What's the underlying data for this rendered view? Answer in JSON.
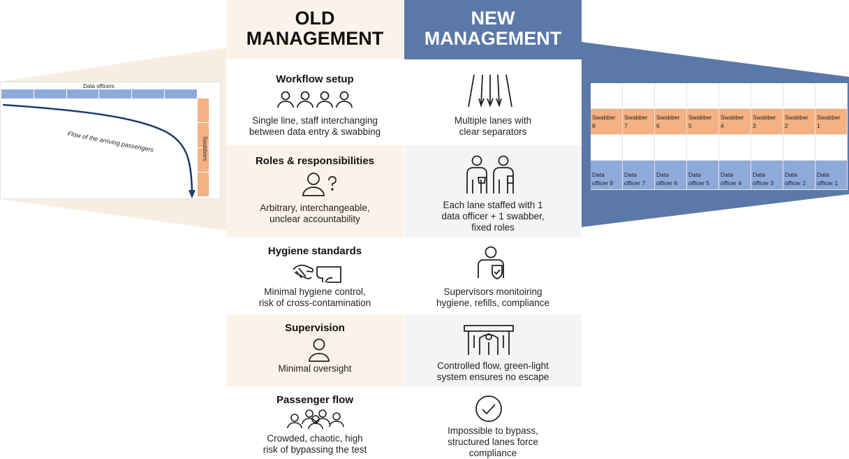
{
  "header": {
    "old_line1": "OLD",
    "old_line2": "MANAGEMENT",
    "new_line1": "NEW",
    "new_line2": "MANAGEMENT"
  },
  "colors": {
    "new_blue": "#5a79a9",
    "old_beige": "#fbf3ea",
    "swabber_orange": "#f4b183",
    "data_officer_blue": "#8eaadb"
  },
  "left_diagram": {
    "data_officers_label": "Data officers",
    "swabbers_label": "Swabbers",
    "flow_label": "Flow of the arriving passengers"
  },
  "right_diagram": {
    "swabbers": [
      "Swabber\n8",
      "Swabber\n7",
      "Swabber\n6",
      "Swabber\n5",
      "Swabber\n4",
      "Swabber\n3",
      "Swabber\n2",
      "Swabber\n1"
    ],
    "data_officers": [
      "Data\nofficer 8",
      "Data\nofficer 7",
      "Data\nofficer 6",
      "Data\nofficer 5",
      "Data\nofficer 4",
      "Data\nofficer 3",
      "Data\nofficer 2",
      "Data\nofficer 1"
    ]
  },
  "rows": [
    {
      "title": "Workflow setup",
      "old_icon": "four-people-icon",
      "old_desc": "Single line, staff interchanging\nbetween data entry & swabbing",
      "new_icon": "multiple-lanes-icon",
      "new_desc": "Multiple lanes with\nclear separators"
    },
    {
      "title": "Roles & responsibilities",
      "old_icon": "person-question-icon",
      "old_desc": "Arbitrary, interchangeable,\nunclear accountability",
      "new_icon": "two-staff-icon",
      "new_desc": "Each lane staffed with 1\ndata officer + 1 swabber,\nfixed roles"
    },
    {
      "title": "Hygiene standards",
      "old_icon": "hand-wash-icon",
      "old_desc": "Minimal hygiene control,\nrisk of cross-contamination",
      "new_icon": "supervisor-shield-icon",
      "new_desc": "Supervisors monitoiring\nhygiene, refills, compliance"
    },
    {
      "title": "Supervision",
      "old_icon": "single-person-icon",
      "old_desc": "Minimal oversight",
      "new_icon": "gate-icon",
      "new_desc": "Controlled flow, green-light\nsystem ensures no escape"
    },
    {
      "title": "Passenger flow",
      "old_icon": "crowd-icon",
      "old_desc": "Crowded, chaotic, high\nrisk of bypassing the test",
      "new_icon": "check-circle-icon",
      "new_desc": "Impossible to bypass,\nstructured lanes force\ncompliance"
    }
  ]
}
